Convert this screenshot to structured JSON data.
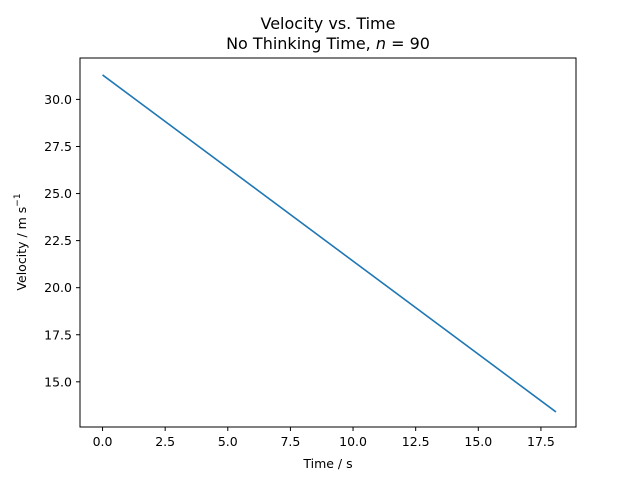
{
  "chart_data": {
    "type": "line",
    "title": "Velocity vs. Time",
    "subtitle_text": "No Thinking Time, ",
    "subtitle_var": "n",
    "subtitle_eq": " = 90",
    "xlabel": "Time / s",
    "ylabel_text": "Velocity / m s",
    "ylabel_exp": "−1",
    "xlim": [
      -0.9,
      18.9
    ],
    "ylim": [
      12.6,
      32.2
    ],
    "xticks": [
      0.0,
      2.5,
      5.0,
      7.5,
      10.0,
      12.5,
      15.0,
      17.5
    ],
    "xtick_labels": [
      "0.0",
      "2.5",
      "5.0",
      "7.5",
      "10.0",
      "12.5",
      "15.0",
      "17.5"
    ],
    "yticks": [
      15.0,
      17.5,
      20.0,
      22.5,
      25.0,
      27.5,
      30.0
    ],
    "ytick_labels": [
      "15.0",
      "17.5",
      "20.0",
      "22.5",
      "25.0",
      "27.5",
      "30.0"
    ],
    "grid": false,
    "series": [
      {
        "x": [
          0.0,
          18.1
        ],
        "y": [
          31.3,
          13.4
        ],
        "color": "#1f77b4"
      }
    ]
  }
}
